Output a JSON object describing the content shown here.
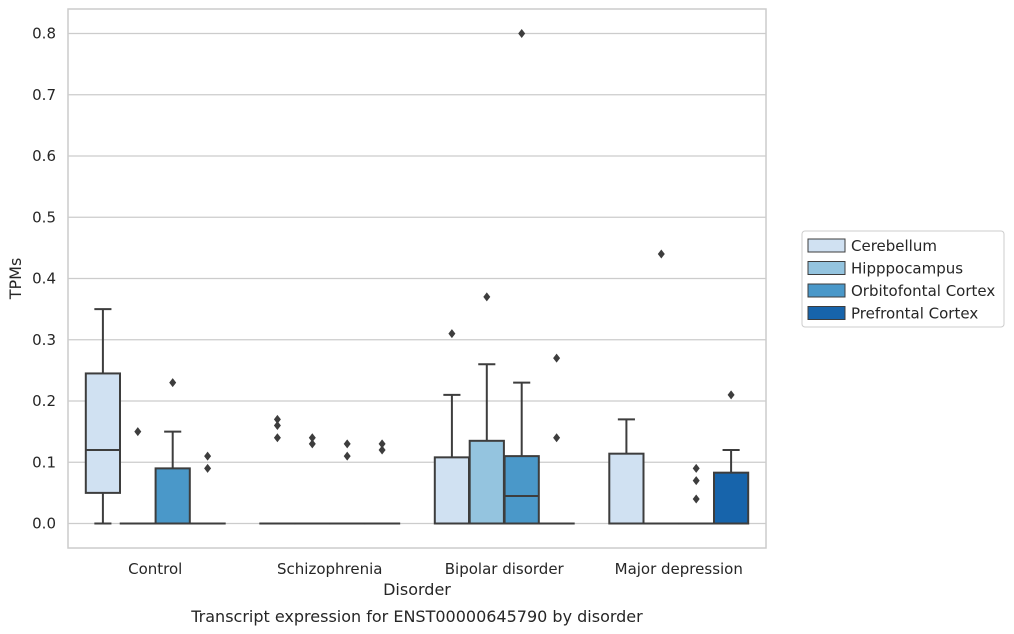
{
  "chart_data": {
    "type": "box",
    "title": "Transcript expression for ENST00000645790 by disorder",
    "xlabel": "Disorder",
    "ylabel": "TPMs",
    "ylim": [
      -0.04,
      0.84
    ],
    "yticks": [
      "0.0",
      "0.1",
      "0.2",
      "0.3",
      "0.4",
      "0.5",
      "0.6",
      "0.7",
      "0.8"
    ],
    "grid": "horizontal",
    "legend_position": "right",
    "categories": [
      "Control",
      "Schizophrenia",
      "Bipolar disorder",
      "Major depression"
    ],
    "series": [
      {
        "name": "Cerebellum",
        "color": "#d0e1f2"
      },
      {
        "name": "Hipppocampus",
        "color": "#94c4df"
      },
      {
        "name": "Orbitofontal Cortex",
        "color": "#4a98c9"
      },
      {
        "name": "Prefrontal Cortex",
        "color": "#1764ab"
      }
    ],
    "boxes": [
      {
        "category": "Control",
        "series": "Cerebellum",
        "whislo": 0.0,
        "q1": 0.05,
        "median": 0.12,
        "q3": 0.245,
        "whishi": 0.35,
        "fliers": []
      },
      {
        "category": "Control",
        "series": "Hipppocampus",
        "whislo": 0.0,
        "q1": 0.0,
        "median": 0.0,
        "q3": 0.0,
        "whishi": 0.0,
        "fliers": [
          0.15
        ]
      },
      {
        "category": "Control",
        "series": "Orbitofontal Cortex",
        "whislo": 0.0,
        "q1": 0.0,
        "median": 0.0,
        "q3": 0.09,
        "whishi": 0.15,
        "fliers": [
          0.23
        ]
      },
      {
        "category": "Control",
        "series": "Prefrontal Cortex",
        "whislo": 0.0,
        "q1": 0.0,
        "median": 0.0,
        "q3": 0.0,
        "whishi": 0.0,
        "fliers": [
          0.09,
          0.11
        ]
      },
      {
        "category": "Schizophrenia",
        "series": "Cerebellum",
        "whislo": 0.0,
        "q1": 0.0,
        "median": 0.0,
        "q3": 0.0,
        "whishi": 0.0,
        "fliers": [
          0.14,
          0.16,
          0.17
        ]
      },
      {
        "category": "Schizophrenia",
        "series": "Hipppocampus",
        "whislo": 0.0,
        "q1": 0.0,
        "median": 0.0,
        "q3": 0.0,
        "whishi": 0.0,
        "fliers": [
          0.13,
          0.14
        ]
      },
      {
        "category": "Schizophrenia",
        "series": "Orbitofontal Cortex",
        "whislo": 0.0,
        "q1": 0.0,
        "median": 0.0,
        "q3": 0.0,
        "whishi": 0.0,
        "fliers": [
          0.11,
          0.13
        ]
      },
      {
        "category": "Schizophrenia",
        "series": "Prefrontal Cortex",
        "whislo": 0.0,
        "q1": 0.0,
        "median": 0.0,
        "q3": 0.0,
        "whishi": 0.0,
        "fliers": [
          0.12,
          0.13
        ]
      },
      {
        "category": "Bipolar disorder",
        "series": "Cerebellum",
        "whislo": 0.0,
        "q1": 0.0,
        "median": 0.0,
        "q3": 0.108,
        "whishi": 0.21,
        "fliers": [
          0.31
        ]
      },
      {
        "category": "Bipolar disorder",
        "series": "Hipppocampus",
        "whislo": 0.0,
        "q1": 0.0,
        "median": 0.0,
        "q3": 0.135,
        "whishi": 0.26,
        "fliers": [
          0.37
        ]
      },
      {
        "category": "Bipolar disorder",
        "series": "Orbitofontal Cortex",
        "whislo": 0.0,
        "q1": 0.0,
        "median": 0.045,
        "q3": 0.11,
        "whishi": 0.23,
        "fliers": [
          0.8
        ]
      },
      {
        "category": "Bipolar disorder",
        "series": "Prefrontal Cortex",
        "whislo": 0.0,
        "q1": 0.0,
        "median": 0.0,
        "q3": 0.0,
        "whishi": 0.0,
        "fliers": [
          0.14,
          0.27
        ]
      },
      {
        "category": "Major depression",
        "series": "Cerebellum",
        "whislo": 0.0,
        "q1": 0.0,
        "median": 0.0,
        "q3": 0.114,
        "whishi": 0.17,
        "fliers": []
      },
      {
        "category": "Major depression",
        "series": "Hipppocampus",
        "whislo": 0.0,
        "q1": 0.0,
        "median": 0.0,
        "q3": 0.0,
        "whishi": 0.0,
        "fliers": [
          0.44
        ]
      },
      {
        "category": "Major depression",
        "series": "Orbitofontal Cortex",
        "whislo": 0.0,
        "q1": 0.0,
        "median": 0.0,
        "q3": 0.0,
        "whishi": 0.0,
        "fliers": [
          0.04,
          0.07,
          0.09
        ]
      },
      {
        "category": "Major depression",
        "series": "Prefrontal Cortex",
        "whislo": 0.0,
        "q1": 0.0,
        "median": 0.0,
        "q3": 0.083,
        "whishi": 0.12,
        "fliers": [
          0.21
        ]
      }
    ]
  }
}
